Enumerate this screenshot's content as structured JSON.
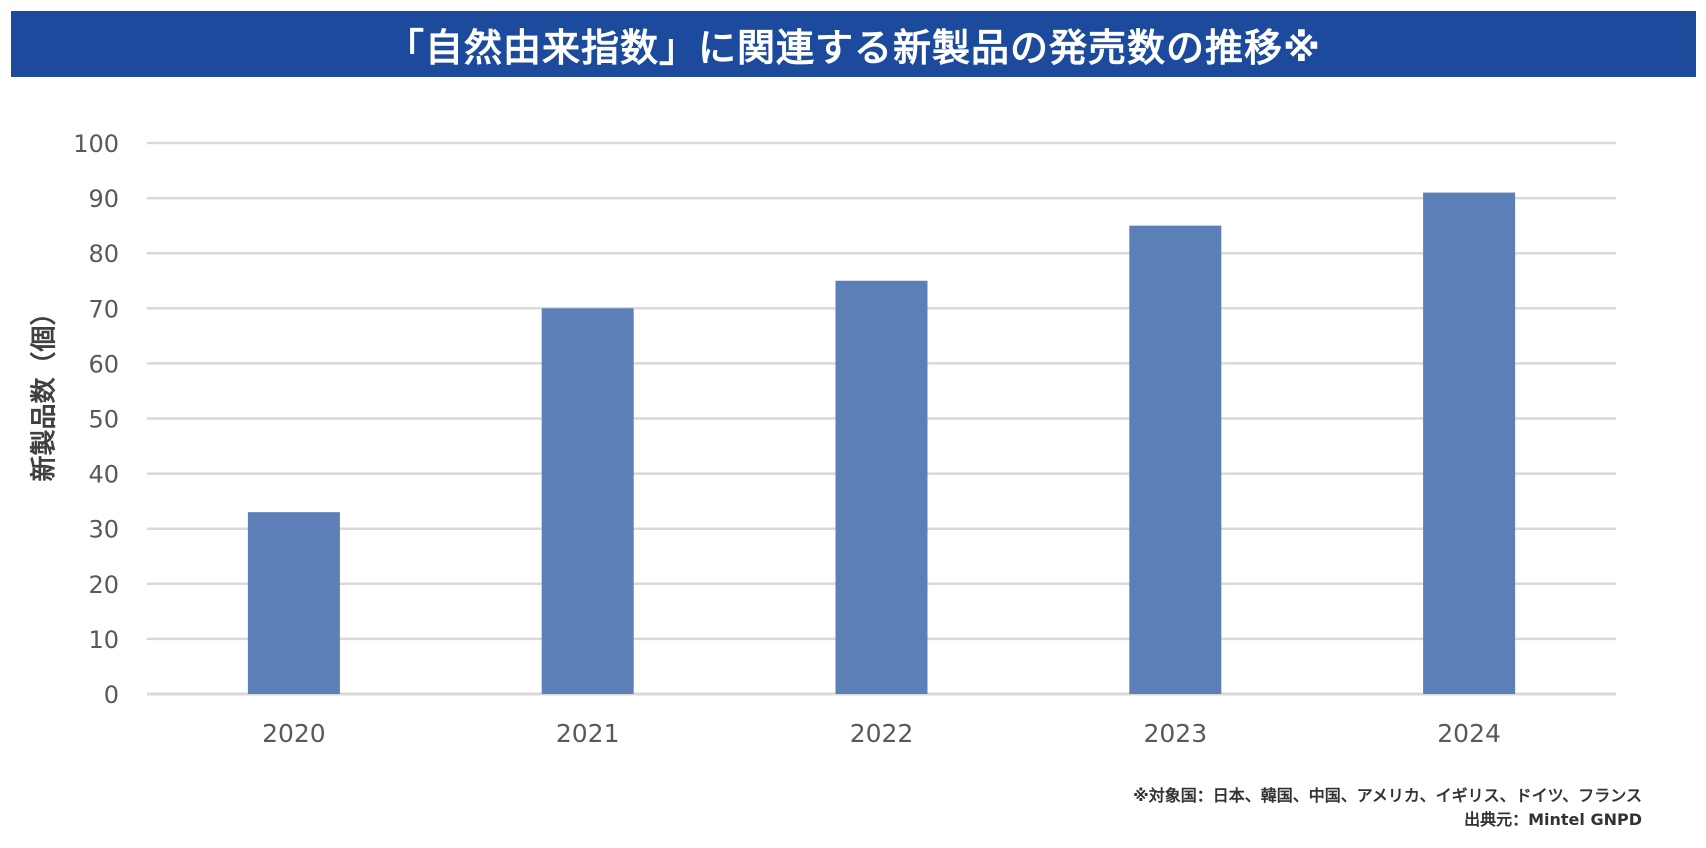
{
  "title": "「自然由来指数」に関連する新製品の発売数の推移※",
  "notes": {
    "target_countries": "※対象国：日本、韓国、中国、アメリカ、イギリス、ドイツ、フランス",
    "source": "出典元：Mintel GNPD"
  },
  "colors": {
    "title_bg": "#1c4a9c",
    "bar": "#5b7fb6",
    "grid": "#d9d9d9",
    "tick_text": "#595959"
  },
  "chart_data": {
    "type": "bar",
    "title": "「自然由来指数」に関連する新製品の発売数の推移※",
    "xlabel": "",
    "ylabel": "新製品数（個）",
    "categories": [
      "2020",
      "2021",
      "2022",
      "2023",
      "2024"
    ],
    "values": [
      33,
      70,
      75,
      85,
      91
    ],
    "ylim": [
      0,
      100
    ],
    "yticks": [
      0,
      10,
      20,
      30,
      40,
      50,
      60,
      70,
      80,
      90,
      100
    ],
    "grid": true,
    "legend": "none"
  }
}
